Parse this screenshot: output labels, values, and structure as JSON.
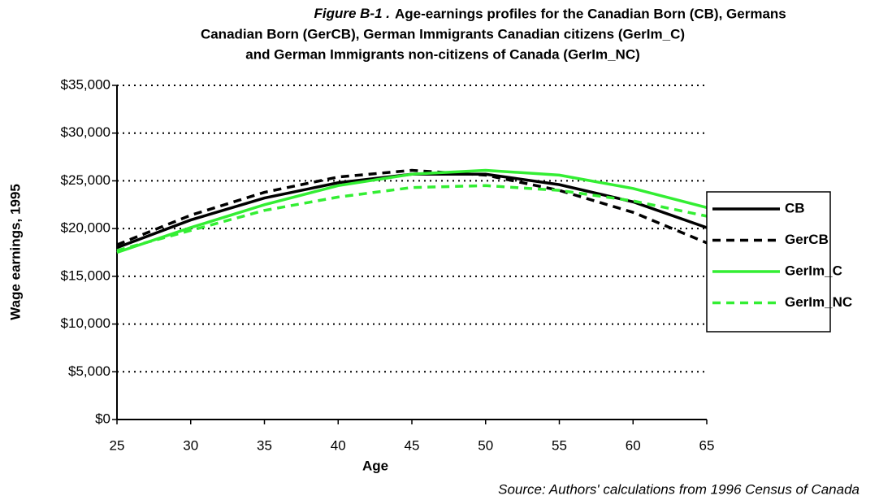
{
  "chart_data": {
    "type": "line",
    "figure_label": "Figure B-1 .",
    "title_lines": [
      "Age-earnings profiles for the Canadian Born (CB), Germans",
      "Canadian Born (GerCB), German Immigrants Canadian citizens (GerIm_C)",
      "and German Immigrants non-citizens of Canada (GerIm_NC)"
    ],
    "x_label": "Age",
    "y_label": "Wage earnings, 1995",
    "source": "Source: Authors' calculations from 1996 Census of Canada",
    "x": [
      25,
      30,
      35,
      40,
      45,
      50,
      55,
      60,
      65
    ],
    "series": [
      {
        "name": "CB",
        "color": "#000000",
        "dash": false,
        "values": [
          18000,
          20900,
          23200,
          24800,
          25700,
          25700,
          24600,
          22800,
          20100
        ]
      },
      {
        "name": "GerCB",
        "color": "#000000",
        "dash": true,
        "values": [
          18300,
          21400,
          23800,
          25400,
          26100,
          25600,
          24000,
          21700,
          18500
        ]
      },
      {
        "name": "GerIm_C",
        "color": "#33ee33",
        "dash": false,
        "values": [
          17500,
          20100,
          22500,
          24500,
          25700,
          26100,
          25600,
          24200,
          22200
        ]
      },
      {
        "name": "GerIm_NC",
        "color": "#33ee33",
        "dash": true,
        "values": [
          17700,
          19800,
          21900,
          23300,
          24300,
          24500,
          24000,
          22900,
          21300
        ]
      }
    ],
    "xlim": [
      25,
      65
    ],
    "xticks": [
      25,
      30,
      35,
      40,
      45,
      50,
      55,
      60,
      65
    ],
    "ylim": [
      0,
      35000
    ],
    "yticks": [
      {
        "value": 0,
        "label": "$0"
      },
      {
        "value": 5000,
        "label": "$5,000"
      },
      {
        "value": 10000,
        "label": "$10,000"
      },
      {
        "value": 15000,
        "label": "$15,000"
      },
      {
        "value": 20000,
        "label": "$20,000"
      },
      {
        "value": 25000,
        "label": "$25,000"
      },
      {
        "value": 30000,
        "label": "$30,000"
      },
      {
        "value": 35000,
        "label": "$35,000"
      }
    ],
    "grid": true,
    "legend": "right"
  }
}
